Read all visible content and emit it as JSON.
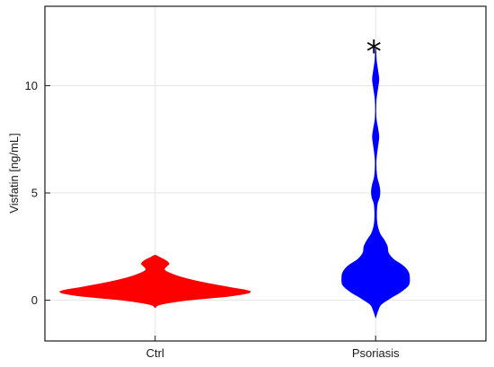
{
  "chart_data": {
    "type": "violin",
    "title": "",
    "xlabel": "",
    "ylabel": "Visfatin [ng/mL]",
    "categories": [
      "Ctrl",
      "Psoriasis"
    ],
    "ylim": [
      -1.9,
      13.7
    ],
    "yticks": [
      0,
      5,
      10
    ],
    "grid": true,
    "legend": "none",
    "series": [
      {
        "category": "Ctrl",
        "color": "#ff0000",
        "density": [
          {
            "y": -0.35,
            "w": 0.0
          },
          {
            "y": -0.2,
            "w": 0.05
          },
          {
            "y": 0.0,
            "w": 0.3
          },
          {
            "y": 0.2,
            "w": 0.72
          },
          {
            "y": 0.4,
            "w": 0.9
          },
          {
            "y": 0.6,
            "w": 0.7
          },
          {
            "y": 0.8,
            "w": 0.48
          },
          {
            "y": 1.0,
            "w": 0.3
          },
          {
            "y": 1.2,
            "w": 0.17
          },
          {
            "y": 1.4,
            "w": 0.09
          },
          {
            "y": 1.55,
            "w": 0.1
          },
          {
            "y": 1.7,
            "w": 0.13
          },
          {
            "y": 1.85,
            "w": 0.1
          },
          {
            "y": 2.0,
            "w": 0.04
          },
          {
            "y": 2.1,
            "w": 0.0
          }
        ]
      },
      {
        "category": "Psoriasis",
        "color": "#0000ff",
        "density": [
          {
            "y": -0.8,
            "w": 0.0
          },
          {
            "y": -0.5,
            "w": 0.02
          },
          {
            "y": -0.2,
            "w": 0.05
          },
          {
            "y": 0.1,
            "w": 0.14
          },
          {
            "y": 0.4,
            "w": 0.24
          },
          {
            "y": 0.7,
            "w": 0.31
          },
          {
            "y": 1.0,
            "w": 0.32
          },
          {
            "y": 1.3,
            "w": 0.31
          },
          {
            "y": 1.6,
            "w": 0.26
          },
          {
            "y": 1.9,
            "w": 0.17
          },
          {
            "y": 2.2,
            "w": 0.12
          },
          {
            "y": 2.5,
            "w": 0.11
          },
          {
            "y": 2.8,
            "w": 0.08
          },
          {
            "y": 3.1,
            "w": 0.04
          },
          {
            "y": 3.5,
            "w": 0.015
          },
          {
            "y": 4.0,
            "w": 0.008
          },
          {
            "y": 4.5,
            "w": 0.015
          },
          {
            "y": 4.8,
            "w": 0.035
          },
          {
            "y": 5.1,
            "w": 0.04
          },
          {
            "y": 5.4,
            "w": 0.03
          },
          {
            "y": 5.8,
            "w": 0.01
          },
          {
            "y": 6.5,
            "w": 0.004
          },
          {
            "y": 7.2,
            "w": 0.02
          },
          {
            "y": 7.6,
            "w": 0.03
          },
          {
            "y": 8.0,
            "w": 0.02
          },
          {
            "y": 8.5,
            "w": 0.004
          },
          {
            "y": 9.3,
            "w": 0.004
          },
          {
            "y": 9.9,
            "w": 0.02
          },
          {
            "y": 10.3,
            "w": 0.03
          },
          {
            "y": 10.7,
            "w": 0.02
          },
          {
            "y": 11.2,
            "w": 0.006
          },
          {
            "y": 11.8,
            "w": 0.0
          }
        ]
      }
    ],
    "annotations": [
      {
        "text": "*",
        "category": "Psoriasis",
        "y": 11.7
      }
    ]
  }
}
